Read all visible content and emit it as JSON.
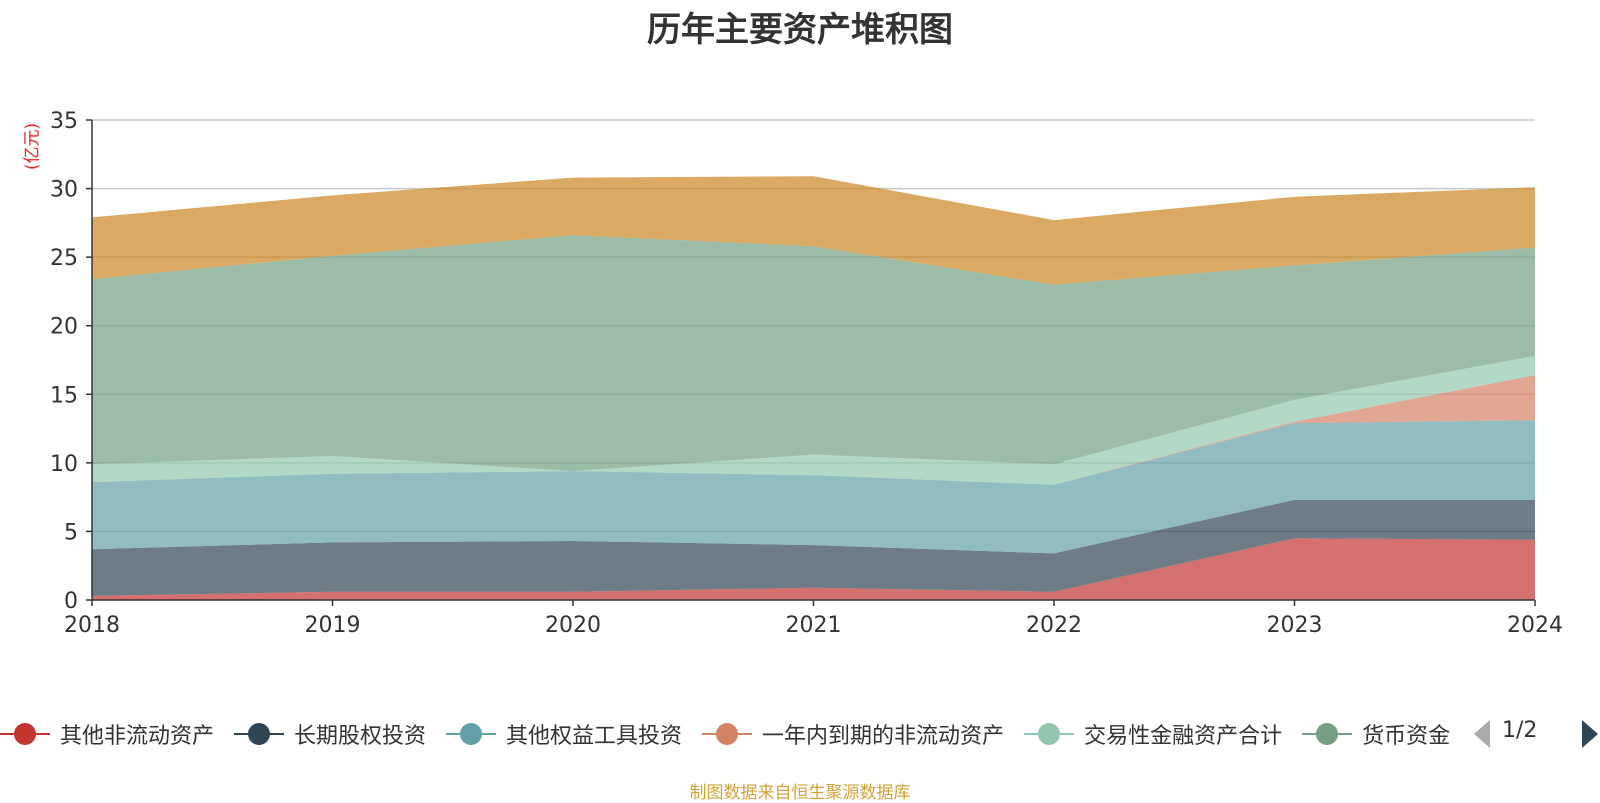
{
  "chart_data": {
    "type": "area",
    "stacked": true,
    "title": "历年主要资产堆积图",
    "ylabel": "(亿元)",
    "ylim": [
      0,
      35
    ],
    "yticks": [
      "0",
      "5",
      "10",
      "15",
      "20",
      "25",
      "30",
      "35"
    ],
    "categories": [
      "2018",
      "2019",
      "2020",
      "2021",
      "2022",
      "2023",
      "2024"
    ],
    "grid": true,
    "legend_position": "bottom",
    "series": [
      {
        "name": "其他非流动资产",
        "color": "#c23531",
        "values": [
          0.3,
          0.6,
          0.6,
          0.9,
          0.6,
          4.5,
          4.4
        ]
      },
      {
        "name": "长期股权投资",
        "color": "#2f4554",
        "values": [
          3.4,
          3.6,
          3.7,
          3.1,
          2.8,
          2.8,
          2.9
        ]
      },
      {
        "name": "其他权益工具投资",
        "color": "#61a0a8",
        "values": [
          4.9,
          5.0,
          5.1,
          5.1,
          5.0,
          5.6,
          5.8
        ]
      },
      {
        "name": "一年内到期的非流动资产",
        "color": "#d48265",
        "values": [
          0,
          0,
          0,
          0,
          0,
          0.1,
          3.3
        ]
      },
      {
        "name": "交易性金融资产合计",
        "color": "#91c7ae",
        "values": [
          1.3,
          1.3,
          0,
          1.5,
          1.5,
          1.6,
          1.4
        ]
      },
      {
        "name": "货币资金",
        "color": "#749f83",
        "values": [
          13.5,
          14.6,
          17.2,
          15.2,
          13.1,
          9.8,
          7.9
        ]
      },
      {
        "name": "",
        "color": "#ca8622",
        "values": [
          4.5,
          4.4,
          4.2,
          5.1,
          4.7,
          5.0,
          4.4
        ]
      }
    ]
  },
  "legend": {
    "items": [
      {
        "label": "其他非流动资产",
        "color": "#c23531"
      },
      {
        "label": "长期股权投资",
        "color": "#2f4554"
      },
      {
        "label": "其他权益工具投资",
        "color": "#61a0a8"
      },
      {
        "label": "一年内到期的非流动资产",
        "color": "#d48265"
      },
      {
        "label": "交易性金融资产合计",
        "color": "#91c7ae"
      },
      {
        "label": "货币资金",
        "color": "#749f83"
      }
    ],
    "page": "1/2"
  },
  "footer": {
    "source": "制图数据来自恒生聚源数据库"
  }
}
